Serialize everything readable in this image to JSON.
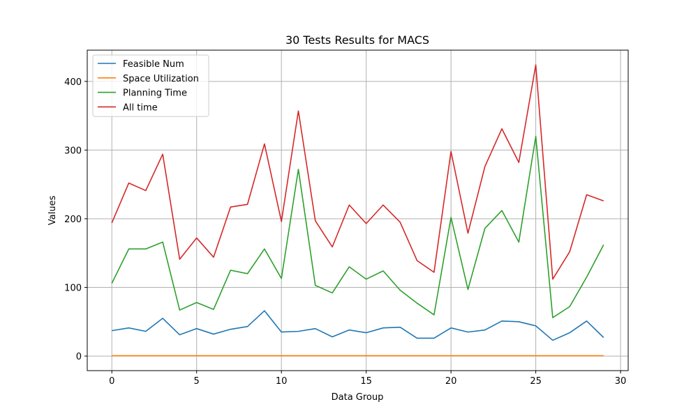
{
  "chart_data": {
    "type": "line",
    "title": "30 Tests Results for MACS",
    "xlabel": "Data Group",
    "ylabel": "Values",
    "xlim": [
      -1.45,
      30.45
    ],
    "ylim": [
      -21.2,
      445.5
    ],
    "xticks": [
      0,
      5,
      10,
      15,
      20,
      25,
      30
    ],
    "yticks": [
      0,
      100,
      200,
      300,
      400
    ],
    "grid": true,
    "legend_position": "top-left",
    "x": [
      0,
      1,
      2,
      3,
      4,
      5,
      6,
      7,
      8,
      9,
      10,
      11,
      12,
      13,
      14,
      15,
      16,
      17,
      18,
      19,
      20,
      21,
      22,
      23,
      24,
      25,
      26,
      27,
      28,
      29
    ],
    "series": [
      {
        "name": "Feasible Num",
        "color": "#1f77b4",
        "values": [
          37,
          41,
          36,
          55,
          31,
          40,
          32,
          39,
          43,
          66,
          35,
          36,
          40,
          28,
          38,
          34,
          41,
          42,
          26,
          26,
          41,
          35,
          38,
          51,
          50,
          44,
          23,
          34,
          51,
          27
        ]
      },
      {
        "name": "Space Utilization",
        "color": "#ff7f0e",
        "values": [
          0.5,
          0.5,
          0.5,
          0.5,
          0.5,
          0.5,
          0.5,
          0.5,
          0.5,
          0.5,
          0.5,
          0.5,
          0.5,
          0.5,
          0.5,
          0.5,
          0.5,
          0.5,
          0.5,
          0.5,
          0.5,
          0.5,
          0.5,
          0.5,
          0.5,
          0.5,
          0.5,
          0.5,
          0.5,
          0.5
        ]
      },
      {
        "name": "Planning Time",
        "color": "#2ca02c",
        "values": [
          106,
          156,
          156,
          166,
          67,
          78,
          68,
          125,
          120,
          156,
          113,
          272,
          103,
          92,
          130,
          112,
          124,
          96,
          77,
          60,
          202,
          97,
          186,
          212,
          166,
          320,
          56,
          72,
          115,
          162
        ]
      },
      {
        "name": "All time",
        "color": "#d62728",
        "values": [
          194,
          252,
          241,
          294,
          141,
          172,
          144,
          217,
          221,
          309,
          196,
          357,
          197,
          159,
          220,
          193,
          220,
          195,
          139,
          122,
          298,
          179,
          276,
          331,
          282,
          424,
          112,
          152,
          235,
          226
        ]
      }
    ]
  }
}
